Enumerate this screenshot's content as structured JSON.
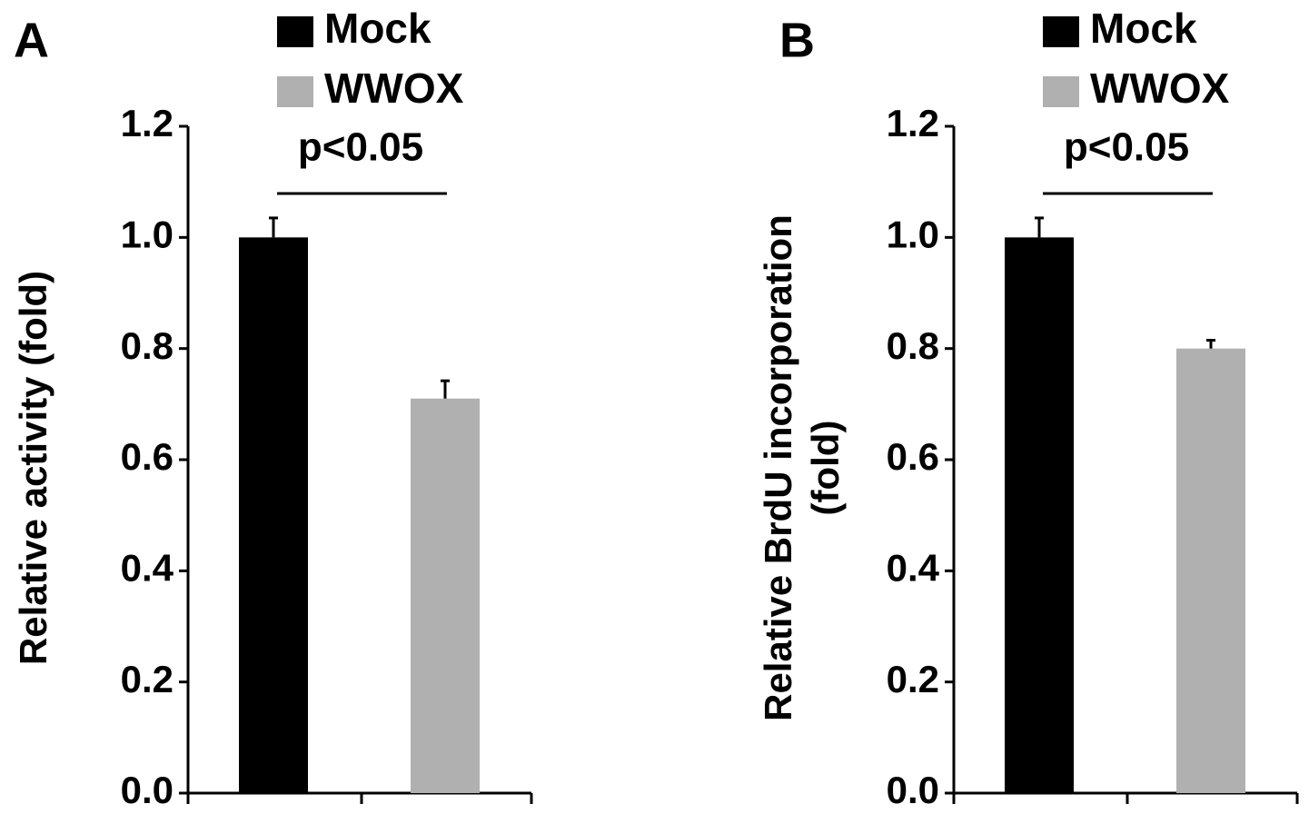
{
  "chart_data": [
    {
      "type": "bar",
      "panel": "A",
      "ylabel": [
        "Relative activity (fold)"
      ],
      "annotation": "p<0.05",
      "series": [
        {
          "name": "Mock",
          "color": "#000000",
          "values": [
            1.0
          ],
          "errors": [
            0.035
          ]
        },
        {
          "name": "WWOX",
          "color": "#b0b0b0",
          "values": [
            0.71
          ],
          "errors": [
            0.032
          ]
        }
      ],
      "ylim": [
        0,
        1.2
      ],
      "yticks": [
        {
          "value": 0,
          "label": "0.0"
        },
        0.2,
        0.4,
        0.6,
        0.8,
        {
          "value": 1,
          "label": "1.0"
        },
        1.2
      ]
    },
    {
      "type": "bar",
      "panel": "B",
      "ylabel": [
        "Relative BrdU incorporation",
        "(fold)"
      ],
      "annotation": "p<0.05",
      "series": [
        {
          "name": "Mock",
          "color": "#000000",
          "values": [
            1.0
          ],
          "errors": [
            0.035
          ]
        },
        {
          "name": "WWOX",
          "color": "#b0b0b0",
          "values": [
            0.8
          ],
          "errors": [
            0.015
          ]
        }
      ],
      "ylim": [
        0,
        1.2
      ],
      "yticks": [
        {
          "value": 0,
          "label": "0.0"
        },
        0.2,
        0.4,
        0.6,
        0.8,
        {
          "value": 1,
          "label": "1.0"
        },
        1.2
      ]
    }
  ]
}
